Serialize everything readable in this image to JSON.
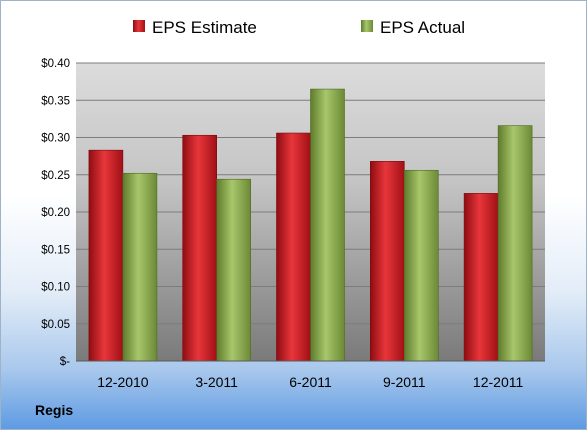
{
  "company": "Regis",
  "colors": {
    "estimate": "#c0141a",
    "actual": "#88a84a"
  },
  "chart_data": {
    "type": "bar",
    "title": "",
    "xlabel": "",
    "ylabel": "",
    "categories": [
      "12-2010",
      "3-2011",
      "6-2011",
      "9-2011",
      "12-2011"
    ],
    "series": [
      {
        "name": "EPS Estimate",
        "values": [
          0.283,
          0.303,
          0.306,
          0.268,
          0.225
        ]
      },
      {
        "name": "EPS Actual",
        "values": [
          0.252,
          0.244,
          0.365,
          0.256,
          0.316
        ]
      }
    ],
    "ylim": [
      0,
      0.4
    ],
    "yticks": [
      0,
      0.05,
      0.1,
      0.15,
      0.2,
      0.25,
      0.3,
      0.35,
      0.4
    ],
    "ytick_labels": [
      "$-",
      "$0.05",
      "$0.10",
      "$0.15",
      "$0.20",
      "$0.25",
      "$0.30",
      "$0.35",
      "$0.40"
    ],
    "grid": true,
    "legend": "top"
  }
}
